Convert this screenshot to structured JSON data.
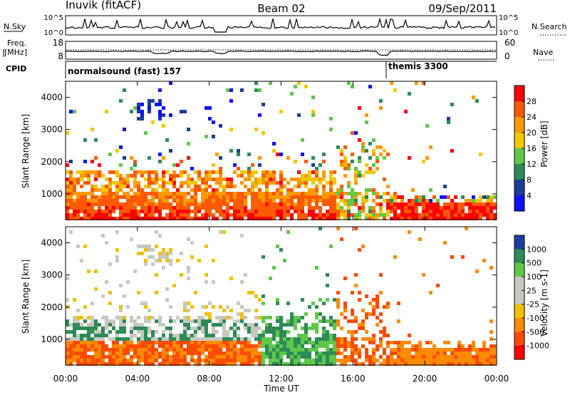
{
  "header": {
    "station": "Inuvik (fitACF)",
    "beam": "Beam 02",
    "date": "09/Sep/2011"
  },
  "summary": {
    "nsky_label": "N.Sky",
    "nsky_ticks": [
      "10^5",
      "10^0"
    ],
    "nsearch_label": "N.Search",
    "nsearch_ticks": [
      "10^5",
      "10^0"
    ],
    "freq_label_line1": "Freq.",
    "freq_label_line2": "[MHz]",
    "freq_ticks": [
      "18",
      "8"
    ],
    "nave_label": "Nave",
    "nave_ticks": [
      "60",
      "0"
    ],
    "cpid_label": "CPID",
    "cpid_segments": [
      {
        "name": "normalsound (fast) 157",
        "start_hour": 0
      },
      {
        "name": "themis 3300",
        "start_hour": 18
      }
    ]
  },
  "chart_data": [
    {
      "type": "heatmap",
      "quantity": "power",
      "xlabel": "",
      "ylabel": "Slant Range [km]",
      "xlim": [
        0,
        24
      ],
      "ylim": [
        200,
        4500
      ],
      "yticks": [
        1000,
        2000,
        3000,
        4000
      ],
      "colorbar_label": "Power [dB]",
      "colorbar_ticks": [
        "28",
        "24",
        "20",
        "16",
        "12",
        "8",
        "4"
      ],
      "colorbar_colors": [
        "#ff0000",
        "#ff5a00",
        "#ff9900",
        "#f0c800",
        "#5fc84a",
        "#2e8b57",
        "#1e3c9a",
        "#1010ff"
      ]
    },
    {
      "type": "heatmap",
      "quantity": "velocity",
      "xlabel": "Time UT",
      "ylabel": "Slant Range [km]",
      "xlim": [
        0,
        24
      ],
      "ylim": [
        200,
        4500
      ],
      "xticks": [
        "00:00",
        "04:00",
        "08:00",
        "12:00",
        "16:00",
        "20:00",
        "00:00"
      ],
      "yticks": [
        1000,
        2000,
        3000,
        4000
      ],
      "colorbar_label": "Velocity [m s-1]",
      "colorbar_ticks": [
        "1000",
        "500",
        "100",
        "25",
        "-25",
        "-100",
        "-500",
        "-1000"
      ],
      "colorbar_colors": [
        "#1e3ca0",
        "#2e8b57",
        "#5fc84a",
        "#c8c8c0",
        "#c8c8c0",
        "#f0c000",
        "#ff8a00",
        "#ff4a00",
        "#ff0000"
      ]
    }
  ]
}
